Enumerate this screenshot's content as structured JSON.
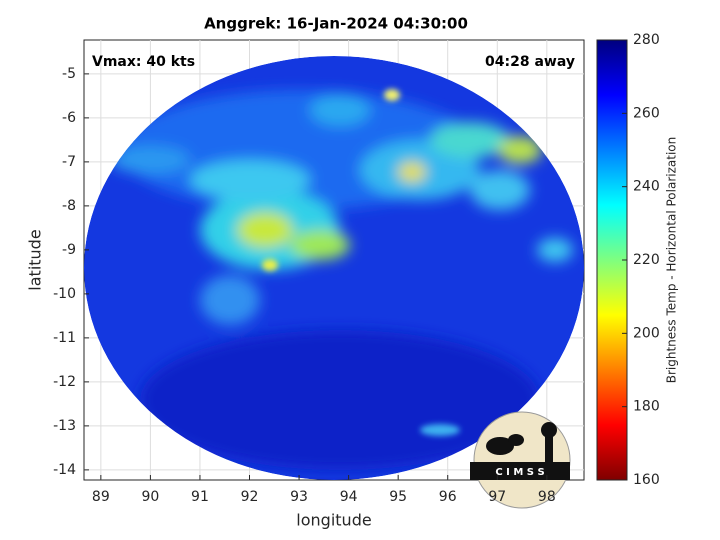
{
  "chart_data": {
    "type": "image",
    "title": "Anggrek: 16-Jan-2024 04:30:00",
    "x_label": "longitude",
    "y_label": "latitude",
    "annotations": [
      "Vmax: 40 kts",
      "04:28 away"
    ],
    "logo": "C I M S S",
    "xlim": [
      88.66,
      98.75
    ],
    "xticks": [
      89,
      90,
      91,
      92,
      93,
      94,
      95,
      96,
      97,
      98
    ],
    "ylim": [
      -4.23,
      -14.23
    ],
    "yticks": [
      -5,
      -6,
      -7,
      -8,
      -9,
      -10,
      -11,
      -12,
      -13,
      -14
    ],
    "grid": true,
    "colorbar": {
      "label": "Brightness Temp - Horizontal Polarization",
      "lim": [
        160,
        280
      ],
      "ticks": [
        160,
        180,
        200,
        220,
        240,
        260,
        280
      ],
      "colormap": "jet"
    }
  }
}
